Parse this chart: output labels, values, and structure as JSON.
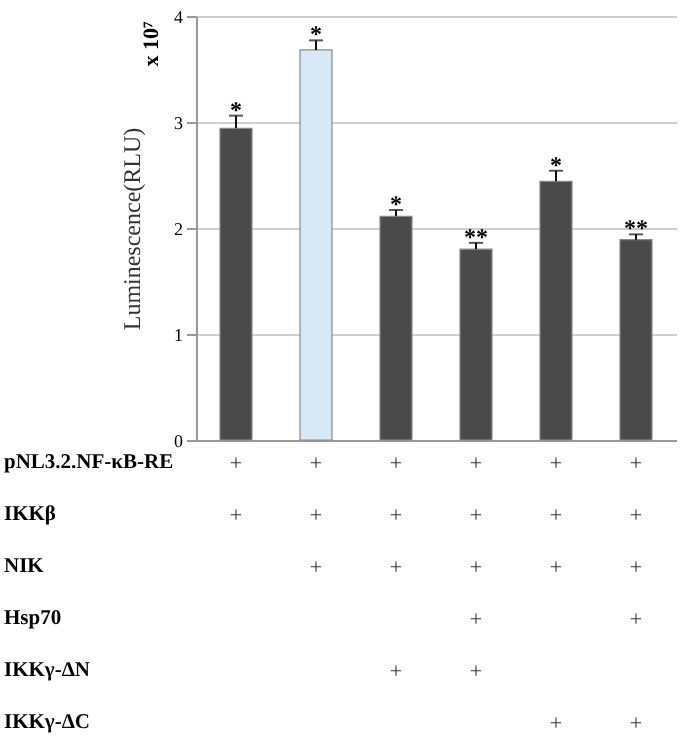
{
  "chart_data": {
    "type": "bar",
    "ylabel": "Luminescence(RLU)",
    "categories": [
      "+\n+\n\n\n\n",
      "+\n+\n+\n\n\n",
      "+\n+\n+\n\n+\n",
      "+\n+\n+\n+\n+\n",
      "+\n+\n+\n\n\n+",
      "+\n+\n+\n+\n\n+"
    ],
    "values": [
      2.94,
      3.68,
      2.11,
      1.8,
      2.44,
      1.89
    ],
    "colors": [
      "#4a4a4a",
      "#d9e8f5",
      "#4a4a4a",
      "#4a4a4a",
      "#4a4a4a",
      "#4a4a4a"
    ],
    "errors": [
      [
        2.94,
        3.06
      ],
      [
        3.68,
        3.77
      ],
      [
        2.11,
        2.17
      ],
      [
        1.8,
        1.86
      ],
      [
        2.44,
        2.54
      ],
      [
        1.89,
        1.94
      ]
    ],
    "ylim": [
      0,
      4
    ],
    "yticks": [
      0,
      1,
      2,
      3,
      4
    ],
    "grid": "y",
    "annotations": [
      "x 10⁷",
      "pNL3.2.NF-κB-RE",
      "IKKβ",
      "NIK",
      "Hsp70",
      "IKKγ-ΔN",
      "IKKγ-ΔC",
      {
        "text": "*",
        "x": "+\n+\n\n\n\n",
        "y": 3.06
      },
      {
        "text": "*",
        "x": "+\n+\n+\n\n\n",
        "y": 3.77
      },
      {
        "text": "*",
        "x": "+\n+\n+\n\n+\n",
        "y": 2.17
      },
      {
        "text": "**",
        "x": "+\n+\n+\n+\n+\n",
        "y": 1.86
      },
      {
        "text": "*",
        "x": "+\n+\n+\n\n\n+",
        "y": 2.54
      },
      {
        "text": "**",
        "x": "+\n+\n+\n+\n\n+",
        "y": 1.94
      }
    ]
  }
}
